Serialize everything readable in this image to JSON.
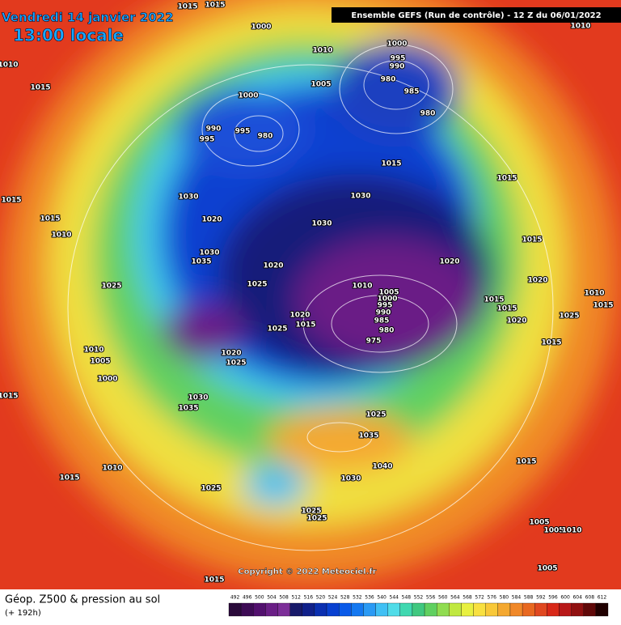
{
  "header": {
    "date": "Vendredi 14 janvier 2022",
    "time": "13:00 locale",
    "run": "Ensemble GEFS  (Run de contrôle)  -  12 Z du 06/01/2022"
  },
  "copyright": "Copyright © 2022 Meteociel.fr",
  "footer": {
    "title": "Géop. Z500 & pression au sol",
    "subtitle": "(+ 192h)"
  },
  "isobar_labels": [
    1015,
    1015,
    1000,
    1010,
    1010,
    1015,
    1000,
    995,
    990,
    980,
    985,
    980,
    1005,
    1000,
    990,
    995,
    995,
    980,
    1015,
    1015,
    1010,
    1015,
    1030,
    1030,
    1015,
    1010,
    1020,
    1030,
    1015,
    1030,
    1035,
    1020,
    1020,
    1025,
    1025,
    1010,
    1005,
    1000,
    995,
    990,
    985,
    980,
    975,
    1020,
    1015,
    1015,
    1010,
    1015,
    1025,
    1020,
    1020,
    1015,
    1025,
    1015,
    1010,
    1005,
    1000,
    1020,
    1025,
    1015,
    1030,
    1035,
    1025,
    1035,
    1040,
    1030,
    1015,
    1010,
    1015,
    1025,
    1025,
    1025,
    1005,
    1005,
    1010,
    1005,
    1015
  ],
  "scale": {
    "values": [
      492,
      496,
      500,
      504,
      508,
      512,
      516,
      520,
      524,
      528,
      532,
      536,
      540,
      544,
      548,
      552,
      556,
      560,
      564,
      568,
      572,
      576,
      580,
      584,
      588,
      592,
      596,
      600,
      604,
      608,
      612
    ],
    "colors": [
      "#2a0a3a",
      "#3d0b55",
      "#52106e",
      "#6a1e86",
      "#7c2e98",
      "#181a6a",
      "#10208a",
      "#0a2fb0",
      "#0840d0",
      "#0a5ae8",
      "#1478f0",
      "#2a9af4",
      "#40c0f4",
      "#50dce8",
      "#40d8b0",
      "#40c880",
      "#60d060",
      "#90dc50",
      "#c0e840",
      "#e8f040",
      "#f8e040",
      "#f8c838",
      "#f4a830",
      "#f08828",
      "#e86820",
      "#e04820",
      "#d82818",
      "#b81818",
      "#901010",
      "#600808",
      "#200000"
    ]
  }
}
